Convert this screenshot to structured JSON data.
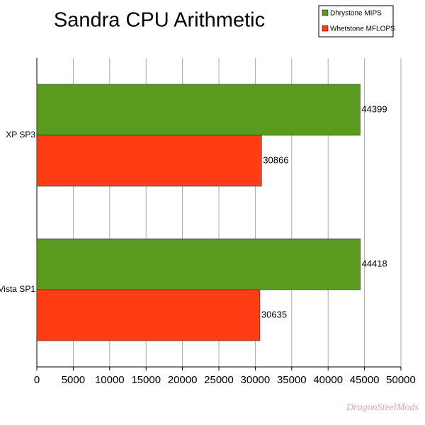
{
  "chart_data": {
    "type": "hbar",
    "title": "Sandra CPU Arithmetic",
    "categories": [
      "XP SP3",
      "Vista SP1"
    ],
    "series": [
      {
        "name": "Dhrystone MIPS",
        "color": "#5a9a1e",
        "values": [
          44399,
          44418
        ]
      },
      {
        "name": "Whetstone MFLOPS",
        "color": "#ff3c14",
        "values": [
          30866,
          30635
        ]
      }
    ],
    "xlim": [
      0,
      50000
    ],
    "xticks": [
      0,
      5000,
      10000,
      15000,
      20000,
      25000,
      30000,
      35000,
      40000,
      45000,
      50000
    ],
    "grid": true,
    "legend": "top-right",
    "watermark": "DragonSteelMods"
  }
}
